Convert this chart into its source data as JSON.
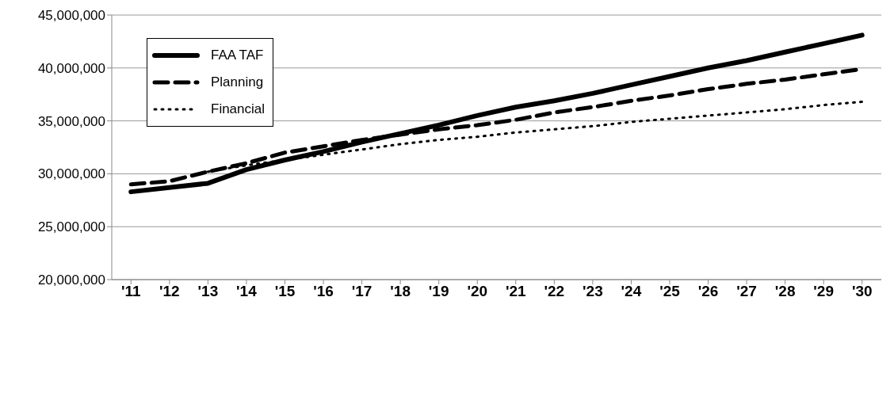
{
  "chart_data": {
    "type": "line",
    "categories": [
      "'11",
      "'12",
      "'13",
      "'14",
      "'15",
      "'16",
      "'17",
      "'18",
      "'19",
      "'20",
      "'21",
      "'22",
      "'23",
      "'24",
      "'25",
      "'26",
      "'27",
      "'28",
      "'29",
      "'30"
    ],
    "series": [
      {
        "name": "FAA TAF",
        "color": "#000000",
        "line_style": "solid",
        "values": [
          28300000,
          28700000,
          29100000,
          30400000,
          31300000,
          32100000,
          33000000,
          33800000,
          34600000,
          35500000,
          36300000,
          36900000,
          37600000,
          38400000,
          39200000,
          40000000,
          40700000,
          41500000,
          42300000,
          43100000
        ]
      },
      {
        "name": "Planning",
        "color": "#000000",
        "line_style": "dashed",
        "values": [
          29000000,
          29300000,
          30200000,
          31000000,
          32000000,
          32600000,
          33200000,
          33700000,
          34200000,
          34600000,
          35100000,
          35800000,
          36300000,
          36900000,
          37400000,
          38000000,
          38500000,
          38900000,
          39400000,
          39900000
        ]
      },
      {
        "name": "Financial",
        "color": "#000000",
        "line_style": "dotted",
        "values": [
          null,
          null,
          30200000,
          30800000,
          31300000,
          31800000,
          32300000,
          32800000,
          33200000,
          33500000,
          33900000,
          34200000,
          34500000,
          34900000,
          35200000,
          35500000,
          35800000,
          36100000,
          36500000,
          36800000
        ]
      }
    ],
    "ylim": [
      20000000,
      45000000
    ],
    "yticks": [
      {
        "value": 20000000,
        "label": "20,000,000"
      },
      {
        "value": 25000000,
        "label": "25,000,000"
      },
      {
        "value": 30000000,
        "label": "30,000,000"
      },
      {
        "value": 35000000,
        "label": "35,000,000"
      },
      {
        "value": 40000000,
        "label": "40,000,000"
      },
      {
        "value": 45000000,
        "label": "45,000,000"
      }
    ],
    "grid": "y",
    "legend": "top left",
    "marker": "none"
  }
}
